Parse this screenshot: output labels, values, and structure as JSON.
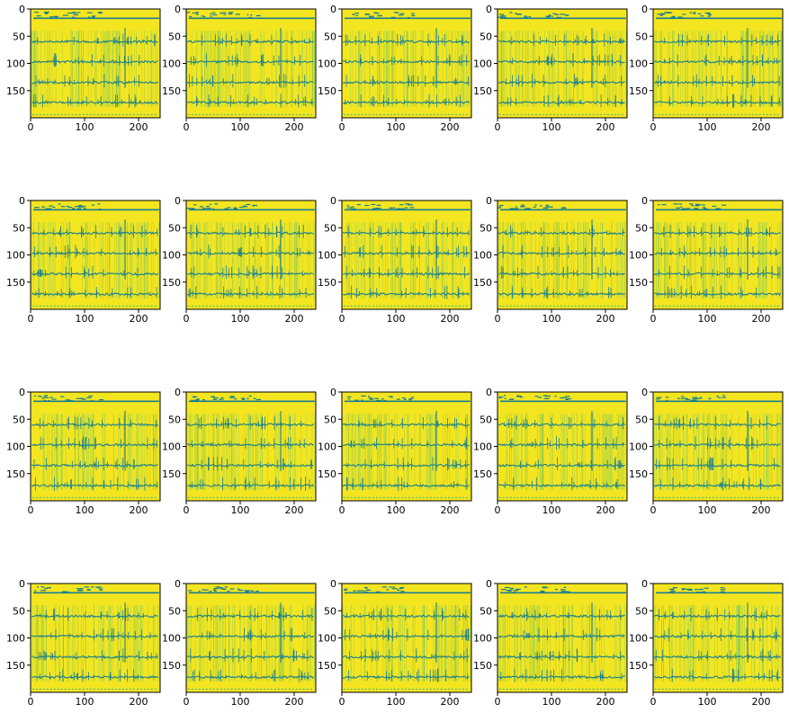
{
  "figure": {
    "background": "#ffffff",
    "colormap_low": "#1a7f8e",
    "colormap_mid": "#35b779",
    "colormap_high": "#f4e521"
  },
  "chart_data": {
    "type": "heatmap",
    "layout": {
      "rows": 4,
      "cols": 5
    },
    "xlim": [
      0,
      240
    ],
    "ylim": [
      200,
      0
    ],
    "xticks": [
      0,
      100,
      200
    ],
    "yticks": [
      0,
      50,
      100,
      150
    ],
    "panels": [
      {
        "id": 1
      },
      {
        "id": 2
      },
      {
        "id": 3
      },
      {
        "id": 4
      },
      {
        "id": 5
      },
      {
        "id": 6
      },
      {
        "id": 7
      },
      {
        "id": 8
      },
      {
        "id": 9
      },
      {
        "id": 10
      },
      {
        "id": 11
      },
      {
        "id": 12
      },
      {
        "id": 13
      },
      {
        "id": 14
      },
      {
        "id": 15
      },
      {
        "id": 16
      },
      {
        "id": 17
      },
      {
        "id": 18
      },
      {
        "id": 19
      },
      {
        "id": 20
      }
    ],
    "trace_rows": [
      60,
      97,
      135,
      172
    ],
    "header_line_row": 17,
    "vertical_marker_col": 175
  }
}
